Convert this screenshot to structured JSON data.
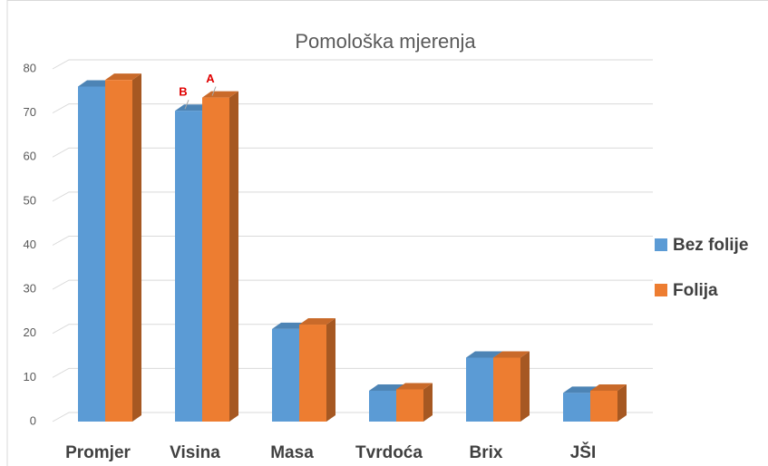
{
  "chart_data": {
    "type": "bar3d",
    "title": "Pomološka mjerenja",
    "categories": [
      "Promjer",
      "Visina",
      "Masa",
      "Tvrdoća",
      "Brix",
      "JŠI"
    ],
    "series": [
      {
        "name": "Bez folije",
        "color": "#5b9bd5",
        "values": [
          76,
          70.5,
          21,
          7,
          14.5,
          6.5
        ]
      },
      {
        "name": "Folija",
        "color": "#ed7d31",
        "values": [
          77.5,
          73.5,
          22,
          7.3,
          14.5,
          7
        ]
      }
    ],
    "annotations": [
      {
        "text": "B",
        "category": 1,
        "series": 0
      },
      {
        "text": "A",
        "category": 1,
        "series": 1
      }
    ],
    "ylim": [
      0,
      80
    ],
    "yticks": [
      0,
      10,
      20,
      30,
      40,
      50,
      60,
      70,
      80
    ],
    "grid": true,
    "legend": "right"
  }
}
